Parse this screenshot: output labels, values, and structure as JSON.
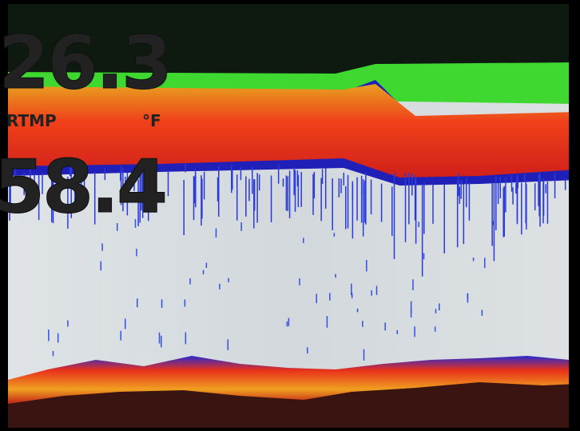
{
  "readouts": {
    "depth": "26.3",
    "temp_label": "RTMP",
    "temp_unit": "°F",
    "temp": "58.4"
  }
}
